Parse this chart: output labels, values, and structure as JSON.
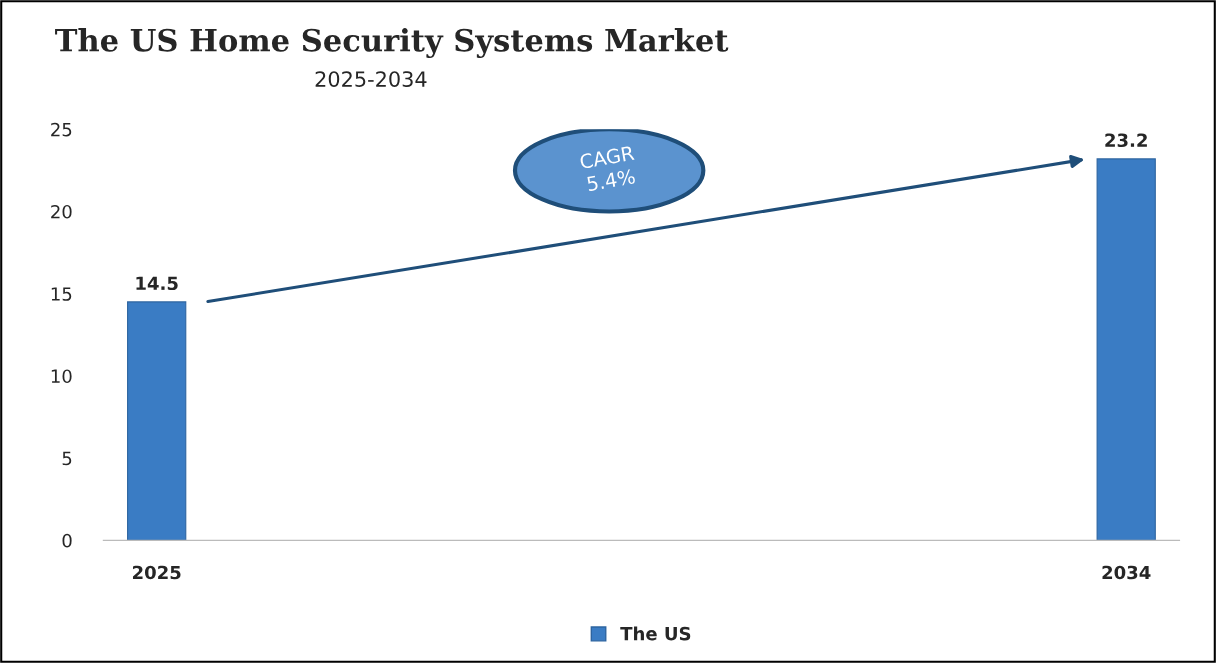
{
  "chart_data": {
    "type": "bar",
    "title": "The US Home Security Systems Market",
    "subtitle": "2025-2034",
    "categories": [
      "2025",
      "2034"
    ],
    "series": [
      {
        "name": "The US",
        "color": "#3a7cc4",
        "values": [
          14.5,
          23.2
        ]
      }
    ],
    "ylim": [
      0,
      25
    ],
    "yticks": [
      0,
      5,
      10,
      15,
      20,
      25
    ],
    "data_labels": true,
    "grid": false,
    "legend": "bottom",
    "annotations": [
      "CAGR\n5.4%"
    ]
  }
}
